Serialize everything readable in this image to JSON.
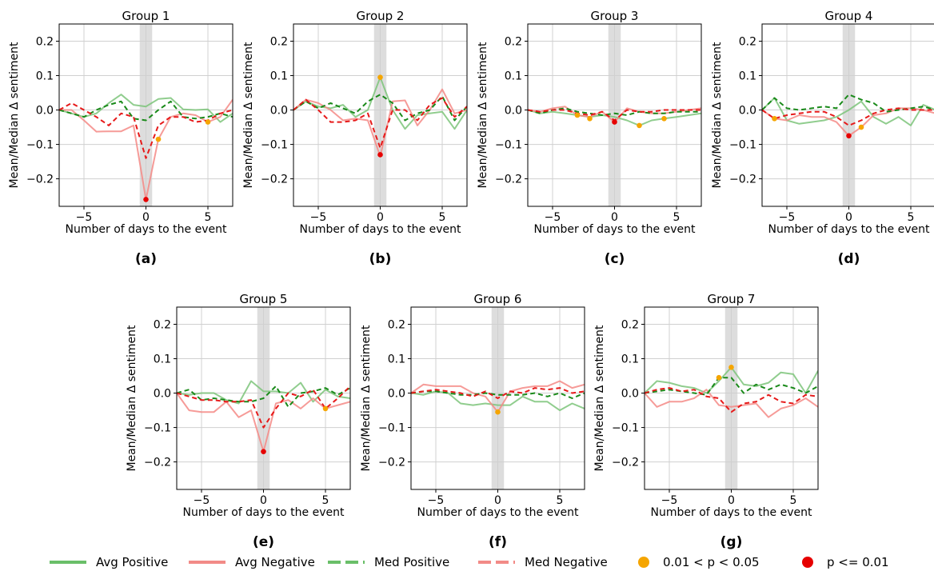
{
  "legend": [
    {
      "key": "avg_pos",
      "label": "Avg Positive",
      "color": "#6abf69",
      "style": "solid"
    },
    {
      "key": "avg_neg",
      "label": "Avg Negative",
      "color": "#f28b87",
      "style": "solid"
    },
    {
      "key": "med_pos",
      "label": "Med Positive",
      "color": "#6abf69",
      "style": "dashed"
    },
    {
      "key": "med_neg",
      "label": "Med Negative",
      "color": "#f28b87",
      "style": "dashed"
    },
    {
      "key": "sig05",
      "label": "0.01 < p < 0.05",
      "color": "#f5a500",
      "style": "dot"
    },
    {
      "key": "sig01",
      "label": "p <= 0.01",
      "color": "#e60000",
      "style": "dot"
    }
  ],
  "colors": {
    "avg_pos": "#7cc47a",
    "avg_neg": "#f48a86",
    "med_pos": "#1a8a1a",
    "med_neg": "#e61a1a",
    "sig05": "#f5a500",
    "sig01": "#e60000",
    "shade": "#dddddd",
    "grid": "#d0d0d0"
  },
  "chart_data": [
    {
      "type": "line",
      "panel_label": "(a)",
      "title": "Group 1",
      "xlabel": "Number of days to the event",
      "ylabel": "Mean/Median Δ sentiment",
      "xlim": [
        -7,
        7
      ],
      "ylim": [
        -0.28,
        0.25
      ],
      "xticks": [
        -5,
        0,
        5
      ],
      "yticks": [
        0.2,
        0.1,
        0.0,
        -0.1,
        -0.2
      ],
      "x": [
        -7,
        -6,
        -5,
        -4,
        -3,
        -2,
        -1,
        0,
        1,
        2,
        3,
        4,
        5,
        6,
        7
      ],
      "series": {
        "avg_pos": [
          0.0,
          -0.01,
          -0.02,
          -0.01,
          0.02,
          0.045,
          0.015,
          0.01,
          0.032,
          0.035,
          0.002,
          0.0,
          0.002,
          -0.035,
          -0.01
        ],
        "avg_neg": [
          0.0,
          0.0,
          -0.03,
          -0.063,
          -0.062,
          -0.062,
          -0.045,
          -0.26,
          -0.085,
          -0.02,
          -0.01,
          -0.015,
          -0.035,
          -0.02,
          0.03
        ],
        "med_pos": [
          0.0,
          -0.01,
          -0.02,
          0.0,
          0.015,
          0.025,
          -0.025,
          -0.03,
          0.0,
          0.025,
          -0.02,
          -0.025,
          -0.02,
          -0.01,
          -0.02
        ],
        "med_neg": [
          0.0,
          0.02,
          0.0,
          -0.02,
          -0.045,
          -0.01,
          -0.02,
          -0.14,
          -0.045,
          -0.02,
          -0.02,
          -0.035,
          -0.03,
          -0.01,
          0.0
        ]
      },
      "markers": [
        {
          "x": 0,
          "y": -0.26,
          "p": "sig01"
        },
        {
          "x": 1,
          "y": -0.085,
          "p": "sig05"
        },
        {
          "x": 5,
          "y": -0.035,
          "p": "sig05"
        }
      ]
    },
    {
      "type": "line",
      "panel_label": "(b)",
      "title": "Group 2",
      "xlabel": "Number of days to the event",
      "ylabel": "Mean/Median Δ sentiment",
      "xlim": [
        -7,
        7
      ],
      "ylim": [
        -0.28,
        0.25
      ],
      "xticks": [
        -5,
        0,
        5
      ],
      "yticks": [
        0.2,
        0.1,
        0.0,
        -0.1,
        -0.2
      ],
      "x": [
        -7,
        -6,
        -5,
        -4,
        -3,
        -2,
        -1,
        0,
        1,
        2,
        3,
        4,
        5,
        6,
        7
      ],
      "series": {
        "avg_pos": [
          0.0,
          0.025,
          0.01,
          0.005,
          0.015,
          -0.02,
          0.0,
          0.095,
          0.0,
          -0.055,
          -0.015,
          -0.01,
          -0.005,
          -0.055,
          0.0
        ],
        "avg_neg": [
          0.0,
          0.03,
          0.02,
          0.0,
          -0.03,
          -0.025,
          -0.03,
          -0.135,
          0.025,
          0.028,
          -0.045,
          0.0,
          0.06,
          -0.01,
          0.0
        ],
        "med_pos": [
          0.0,
          0.025,
          0.005,
          0.02,
          0.005,
          -0.01,
          0.025,
          0.045,
          0.02,
          -0.03,
          -0.01,
          0.0,
          0.04,
          -0.03,
          0.01
        ],
        "med_neg": [
          0.0,
          0.03,
          0.0,
          -0.035,
          -0.035,
          -0.03,
          -0.01,
          -0.11,
          0.0,
          0.0,
          -0.03,
          0.015,
          0.035,
          -0.02,
          0.01
        ]
      },
      "markers": [
        {
          "x": 0,
          "y": 0.095,
          "p": "sig05"
        },
        {
          "x": 0,
          "y": -0.13,
          "p": "sig01"
        }
      ]
    },
    {
      "type": "line",
      "panel_label": "(c)",
      "title": "Group 3",
      "xlabel": "Number of days to the event",
      "ylabel": "Mean/Median Δ sentiment",
      "xlim": [
        -7,
        7
      ],
      "ylim": [
        -0.28,
        0.25
      ],
      "xticks": [
        -5,
        0,
        5
      ],
      "yticks": [
        0.2,
        0.1,
        0.0,
        -0.1,
        -0.2
      ],
      "x": [
        -7,
        -6,
        -5,
        -4,
        -3,
        -2,
        -1,
        0,
        1,
        2,
        3,
        4,
        5,
        6,
        7
      ],
      "series": {
        "avg_pos": [
          0.0,
          -0.01,
          -0.005,
          -0.01,
          -0.015,
          -0.02,
          -0.015,
          -0.02,
          -0.03,
          -0.045,
          -0.03,
          -0.025,
          -0.02,
          -0.015,
          -0.01
        ],
        "avg_neg": [
          0.0,
          -0.005,
          0.005,
          0.01,
          -0.015,
          -0.02,
          -0.005,
          -0.035,
          0.005,
          -0.005,
          -0.01,
          -0.01,
          -0.005,
          0.0,
          0.005
        ],
        "med_pos": [
          0.0,
          -0.01,
          0.0,
          0.005,
          -0.005,
          -0.01,
          -0.015,
          -0.01,
          -0.015,
          -0.005,
          -0.01,
          -0.01,
          -0.005,
          -0.005,
          -0.005
        ],
        "med_neg": [
          0.0,
          -0.005,
          0.0,
          0.0,
          -0.01,
          -0.015,
          -0.005,
          -0.03,
          0.0,
          -0.005,
          -0.005,
          0.0,
          0.0,
          0.0,
          0.0
        ]
      },
      "markers": [
        {
          "x": -3,
          "y": -0.015,
          "p": "sig05"
        },
        {
          "x": -2,
          "y": -0.025,
          "p": "sig05"
        },
        {
          "x": 0,
          "y": -0.035,
          "p": "sig01"
        },
        {
          "x": 2,
          "y": -0.045,
          "p": "sig05"
        },
        {
          "x": 4,
          "y": -0.025,
          "p": "sig05"
        }
      ]
    },
    {
      "type": "line",
      "panel_label": "(d)",
      "title": "Group 4",
      "xlabel": "Number of days to the event",
      "ylabel": "Mean/Median Δ sentiment",
      "xlim": [
        -7,
        7
      ],
      "ylim": [
        -0.28,
        0.25
      ],
      "xticks": [
        -5,
        0,
        5
      ],
      "yticks": [
        0.2,
        0.1,
        0.0,
        -0.1,
        -0.2
      ],
      "x": [
        -7,
        -6,
        -5,
        -4,
        -3,
        -2,
        -1,
        0,
        1,
        2,
        3,
        4,
        5,
        6,
        7
      ],
      "series": {
        "avg_pos": [
          0.0,
          0.035,
          -0.03,
          -0.04,
          -0.035,
          -0.03,
          -0.02,
          0.0,
          0.025,
          -0.02,
          -0.04,
          -0.02,
          -0.045,
          0.015,
          0.0
        ],
        "avg_neg": [
          0.0,
          -0.025,
          -0.03,
          -0.015,
          -0.02,
          -0.02,
          -0.035,
          -0.075,
          -0.05,
          -0.015,
          -0.01,
          0.005,
          0.005,
          0.0,
          -0.01
        ],
        "med_pos": [
          0.0,
          0.035,
          0.005,
          0.0,
          0.005,
          0.01,
          0.005,
          0.045,
          0.03,
          0.02,
          -0.005,
          0.0,
          0.005,
          0.01,
          0.0
        ],
        "med_neg": [
          0.0,
          -0.025,
          -0.015,
          -0.01,
          -0.005,
          -0.005,
          -0.02,
          -0.045,
          -0.03,
          -0.01,
          0.0,
          0.005,
          0.0,
          0.0,
          0.0
        ]
      },
      "markers": [
        {
          "x": -6,
          "y": -0.025,
          "p": "sig05"
        },
        {
          "x": 0,
          "y": -0.075,
          "p": "sig01"
        },
        {
          "x": 1,
          "y": -0.05,
          "p": "sig05"
        }
      ]
    },
    {
      "type": "line",
      "panel_label": "(e)",
      "title": "Group 5",
      "xlabel": "Number of days to the event",
      "ylabel": "Mean/Median Δ sentiment",
      "xlim": [
        -7,
        7
      ],
      "ylim": [
        -0.28,
        0.25
      ],
      "xticks": [
        -5,
        0,
        5
      ],
      "yticks": [
        0.2,
        0.1,
        0.0,
        -0.1,
        -0.2
      ],
      "x": [
        -7,
        -6,
        -5,
        -4,
        -3,
        -2,
        -1,
        0,
        1,
        2,
        3,
        4,
        5,
        6,
        7
      ],
      "series": {
        "avg_pos": [
          0.0,
          -0.005,
          0.0,
          0.0,
          -0.02,
          -0.03,
          0.035,
          0.005,
          0.005,
          0.0,
          0.03,
          -0.025,
          0.01,
          -0.01,
          -0.015
        ],
        "avg_neg": [
          0.0,
          -0.05,
          -0.055,
          -0.055,
          -0.025,
          -0.07,
          -0.05,
          -0.17,
          -0.03,
          -0.02,
          -0.045,
          -0.015,
          -0.045,
          -0.035,
          -0.025
        ],
        "med_pos": [
          0.0,
          0.01,
          -0.02,
          -0.015,
          -0.02,
          -0.025,
          -0.025,
          -0.015,
          0.02,
          -0.04,
          0.0,
          0.005,
          0.015,
          -0.005,
          0.015
        ],
        "med_neg": [
          0.0,
          -0.01,
          -0.02,
          -0.02,
          -0.025,
          -0.025,
          -0.02,
          -0.1,
          -0.045,
          0.0,
          -0.01,
          0.01,
          -0.045,
          -0.015,
          0.02
        ]
      },
      "markers": [
        {
          "x": 0,
          "y": -0.17,
          "p": "sig01"
        },
        {
          "x": 5,
          "y": -0.045,
          "p": "sig05"
        }
      ]
    },
    {
      "type": "line",
      "panel_label": "(f)",
      "title": "Group 6",
      "xlabel": "Number of days to the event",
      "ylabel": "Mean/Median Δ sentiment",
      "xlim": [
        -7,
        7
      ],
      "ylim": [
        -0.28,
        0.25
      ],
      "xticks": [
        -5,
        0,
        5
      ],
      "yticks": [
        0.2,
        0.1,
        0.0,
        -0.1,
        -0.2
      ],
      "x": [
        -7,
        -6,
        -5,
        -4,
        -3,
        -2,
        -1,
        0,
        1,
        2,
        3,
        4,
        5,
        6,
        7
      ],
      "series": {
        "avg_pos": [
          0.0,
          -0.005,
          0.005,
          0.0,
          -0.03,
          -0.035,
          -0.03,
          -0.035,
          -0.035,
          -0.01,
          -0.025,
          -0.025,
          -0.05,
          -0.03,
          -0.045
        ],
        "avg_neg": [
          0.0,
          0.025,
          0.02,
          0.02,
          0.02,
          0.0,
          -0.01,
          -0.055,
          0.005,
          0.015,
          0.02,
          0.02,
          0.035,
          0.015,
          0.025
        ],
        "med_pos": [
          0.0,
          0.005,
          0.005,
          0.0,
          -0.005,
          -0.005,
          0.0,
          -0.005,
          -0.005,
          -0.005,
          0.0,
          -0.01,
          0.0,
          -0.015,
          0.0
        ],
        "med_neg": [
          0.0,
          0.005,
          0.01,
          0.005,
          0.0,
          -0.01,
          0.005,
          -0.015,
          0.005,
          0.0,
          0.015,
          0.01,
          0.015,
          0.0,
          0.005
        ]
      },
      "markers": [
        {
          "x": 0,
          "y": -0.055,
          "p": "sig05"
        }
      ]
    },
    {
      "type": "line",
      "panel_label": "(g)",
      "title": "Group 7",
      "xlabel": "Number of days to the event",
      "ylabel": "Mean/Median Δ sentiment",
      "xlim": [
        -7,
        7
      ],
      "ylim": [
        -0.28,
        0.25
      ],
      "xticks": [
        -5,
        0,
        5
      ],
      "yticks": [
        0.2,
        0.1,
        0.0,
        -0.1,
        -0.2
      ],
      "x": [
        -7,
        -6,
        -5,
        -4,
        -3,
        -2,
        -1,
        0,
        1,
        2,
        3,
        4,
        5,
        6,
        7
      ],
      "series": {
        "avg_pos": [
          0.0,
          0.035,
          0.03,
          0.02,
          0.015,
          0.0,
          0.035,
          0.075,
          0.025,
          0.02,
          0.03,
          0.06,
          0.055,
          0.0,
          0.065
        ],
        "avg_neg": [
          0.0,
          -0.04,
          -0.025,
          -0.025,
          -0.015,
          0.01,
          -0.035,
          -0.04,
          -0.035,
          -0.03,
          -0.07,
          -0.045,
          -0.035,
          -0.015,
          -0.04
        ],
        "med_pos": [
          0.0,
          0.005,
          0.01,
          0.005,
          0.0,
          -0.005,
          0.045,
          0.045,
          0.0,
          0.025,
          0.01,
          0.025,
          0.015,
          0.0,
          0.02
        ],
        "med_neg": [
          0.0,
          0.01,
          0.015,
          0.005,
          0.01,
          -0.01,
          -0.015,
          -0.055,
          -0.03,
          -0.025,
          -0.005,
          -0.025,
          -0.03,
          -0.005,
          -0.01
        ]
      },
      "markers": [
        {
          "x": -1,
          "y": 0.045,
          "p": "sig05"
        },
        {
          "x": 0,
          "y": 0.075,
          "p": "sig05"
        }
      ]
    }
  ]
}
